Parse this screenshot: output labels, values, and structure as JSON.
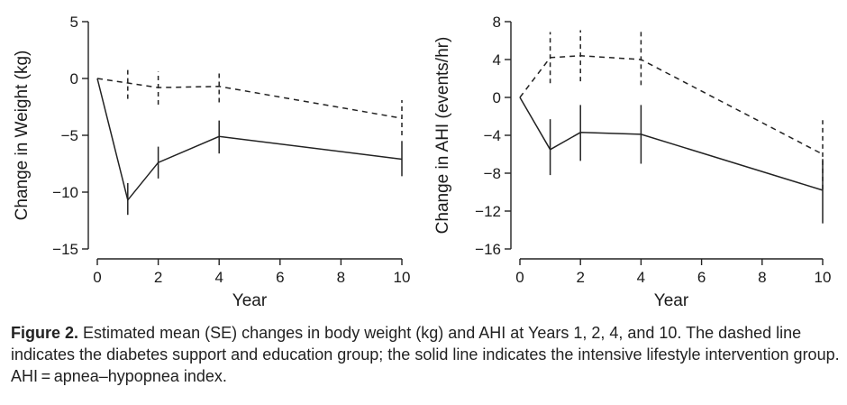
{
  "chart_data": [
    {
      "type": "line",
      "xlabel": "Year",
      "ylabel": "Change in Weight (kg)",
      "xlim": [
        0,
        10
      ],
      "ylim": [
        -15,
        5
      ],
      "xticks": [
        0,
        2,
        4,
        6,
        8,
        10
      ],
      "yticks": [
        5,
        0,
        -5,
        -10,
        -15
      ],
      "ytick_labels": [
        "5",
        "0",
        "−5",
        "−10",
        "−15"
      ],
      "grid": false,
      "series": [
        {
          "style": "dashed",
          "x": [
            0,
            1,
            2,
            4,
            10
          ],
          "y": [
            0,
            -0.4,
            -0.8,
            -0.7,
            -3.5
          ],
          "err_low": [
            0,
            -1.8,
            -2.3,
            -2.1,
            -5.0
          ],
          "err_high": [
            0,
            1.0,
            0.6,
            0.7,
            -1.9
          ]
        },
        {
          "style": "solid",
          "x": [
            0,
            1,
            2,
            4,
            10
          ],
          "y": [
            0,
            -10.7,
            -7.4,
            -5.1,
            -7.1
          ],
          "err_low": [
            0,
            -12.0,
            -8.8,
            -6.6,
            -8.6
          ],
          "err_high": [
            0,
            -9.2,
            -6.0,
            -3.7,
            -5.5
          ]
        }
      ]
    },
    {
      "type": "line",
      "xlabel": "Year",
      "ylabel": "Change in AHI (events/hr)",
      "xlim": [
        0,
        10
      ],
      "ylim": [
        -16,
        8
      ],
      "xticks": [
        0,
        2,
        4,
        6,
        8,
        10
      ],
      "yticks": [
        8,
        4,
        0,
        -4,
        -8,
        -12,
        -16
      ],
      "ytick_labels": [
        "8",
        "4",
        "0",
        "−4",
        "−8",
        "−12",
        "−16"
      ],
      "grid": false,
      "series": [
        {
          "style": "dashed",
          "x": [
            0,
            1,
            2,
            4,
            10
          ],
          "y": [
            0,
            4.2,
            4.4,
            4.0,
            -6.0
          ],
          "err_low": [
            0,
            1.5,
            1.7,
            1.3,
            -9.7
          ],
          "err_high": [
            0,
            6.9,
            7.1,
            7.1,
            -2.4
          ]
        },
        {
          "style": "solid",
          "x": [
            0,
            1,
            2,
            4,
            10
          ],
          "y": [
            0,
            -5.5,
            -3.7,
            -3.9,
            -9.8
          ],
          "err_low": [
            0,
            -8.2,
            -6.7,
            -7.0,
            -13.3
          ],
          "err_high": [
            0,
            -2.3,
            -0.8,
            -0.8,
            -6.5
          ]
        }
      ]
    }
  ],
  "caption": {
    "label": "Figure 2.",
    "text": "Estimated mean (SE) changes in body weight (kg) and AHI at Years 1, 2, 4, and 10. The dashed line indicates the diabetes support and education group; the solid line indicates the intensive lifestyle intervention group. AHI = apnea–hypopnea index."
  }
}
